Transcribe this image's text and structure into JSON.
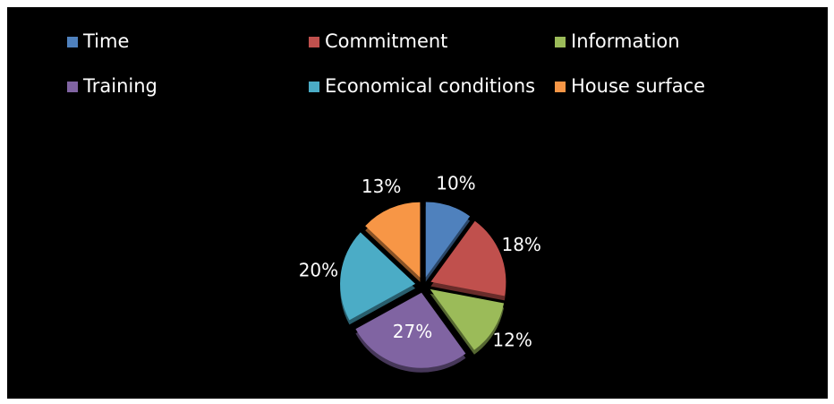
{
  "chart_data": {
    "type": "pie",
    "categories": [
      "Time",
      "Commitment",
      "Information",
      "Training",
      "Economical conditions",
      "House surface"
    ],
    "values": [
      10,
      18,
      12,
      27,
      20,
      13
    ],
    "value_labels": [
      "10%",
      "18%",
      "12%",
      "27%",
      "20%",
      "13%"
    ],
    "colors": [
      "#4f81bd",
      "#c0504d",
      "#9bbb59",
      "#8064a2",
      "#4bacc6",
      "#f79646"
    ],
    "legend": "top"
  }
}
